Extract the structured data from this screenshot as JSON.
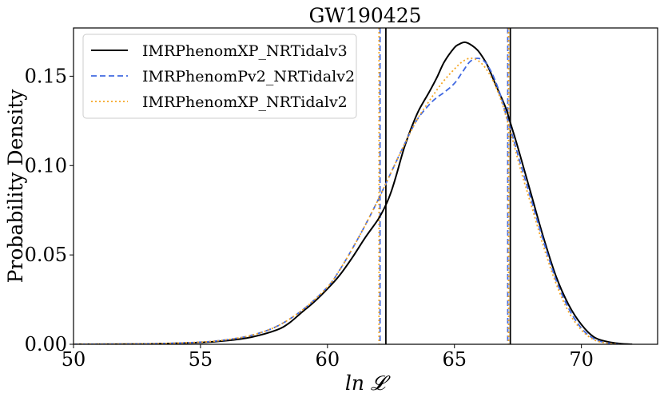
{
  "chart_data": {
    "type": "line",
    "title": "GW190425",
    "xlabel": "ln 𝓛",
    "ylabel": "Probability Density",
    "xlim": [
      50,
      73
    ],
    "ylim": [
      0,
      0.177
    ],
    "xticks": [
      50,
      55,
      60,
      65,
      70
    ],
    "xtick_labels": [
      "50",
      "55",
      "60",
      "65",
      "70"
    ],
    "yticks": [
      0.0,
      0.05,
      0.1,
      0.15
    ],
    "ytick_labels": [
      "0.00",
      "0.05",
      "0.10",
      "0.15"
    ],
    "grid": false,
    "legend_position": "top-left",
    "series": [
      {
        "name": "IMRPhenomXP_NRTidalv3",
        "color": "#000000",
        "style": "solid",
        "x": [
          50,
          53,
          55,
          56,
          57,
          58,
          58.5,
          59,
          59.5,
          60,
          60.5,
          61,
          61.5,
          62,
          62.3,
          62.5,
          62.7,
          63,
          63.3,
          63.6,
          64,
          64.3,
          64.6,
          65,
          65.2,
          65.4,
          65.6,
          65.8,
          66,
          66.3,
          66.6,
          67,
          67.2,
          67.5,
          68,
          68.5,
          69,
          69.5,
          70,
          70.5,
          71,
          71.5,
          72
        ],
        "y": [
          0.0,
          0.0002,
          0.001,
          0.002,
          0.004,
          0.008,
          0.012,
          0.018,
          0.024,
          0.031,
          0.039,
          0.049,
          0.06,
          0.07,
          0.078,
          0.085,
          0.094,
          0.109,
          0.121,
          0.131,
          0.141,
          0.149,
          0.158,
          0.166,
          0.168,
          0.169,
          0.168,
          0.166,
          0.163,
          0.156,
          0.146,
          0.133,
          0.124,
          0.11,
          0.085,
          0.06,
          0.038,
          0.022,
          0.011,
          0.004,
          0.0015,
          0.0004,
          0.0
        ]
      },
      {
        "name": "IMRPhenomPv2_NRTidalv2",
        "color": "#4169e1",
        "style": "dashed",
        "x": [
          50,
          53,
          55,
          56,
          57,
          58,
          59,
          60,
          60.5,
          61,
          61.5,
          62,
          62.5,
          63,
          63.5,
          64,
          64.3,
          64.6,
          65,
          65.3,
          65.6,
          65.9,
          66.2,
          66.5,
          66.8,
          67,
          67.3,
          67.6,
          68,
          68.5,
          69,
          69.5,
          70,
          70.5,
          71,
          71.5
        ],
        "y": [
          0.0,
          0.0003,
          0.0012,
          0.0025,
          0.005,
          0.01,
          0.019,
          0.032,
          0.042,
          0.054,
          0.067,
          0.081,
          0.096,
          0.111,
          0.125,
          0.134,
          0.138,
          0.141,
          0.146,
          0.152,
          0.158,
          0.16,
          0.158,
          0.151,
          0.14,
          0.13,
          0.116,
          0.101,
          0.082,
          0.058,
          0.036,
          0.02,
          0.009,
          0.003,
          0.0008,
          0.0
        ]
      },
      {
        "name": "IMRPhenomXP_NRTidalv2",
        "color": "#f5a623",
        "style": "dotted",
        "x": [
          50,
          53,
          55,
          56,
          57,
          58,
          59,
          60,
          60.5,
          61,
          61.5,
          62,
          62.5,
          63,
          63.5,
          64,
          64.5,
          65,
          65.3,
          65.6,
          65.9,
          66.2,
          66.5,
          66.8,
          67,
          67.3,
          67.6,
          68,
          68.5,
          69,
          69.5,
          70,
          70.5,
          71,
          71.5
        ],
        "y": [
          0.0,
          0.0003,
          0.0012,
          0.0025,
          0.005,
          0.01,
          0.019,
          0.032,
          0.042,
          0.054,
          0.067,
          0.081,
          0.096,
          0.111,
          0.125,
          0.136,
          0.146,
          0.154,
          0.158,
          0.16,
          0.159,
          0.155,
          0.148,
          0.138,
          0.129,
          0.114,
          0.098,
          0.079,
          0.055,
          0.034,
          0.018,
          0.008,
          0.0025,
          0.0007,
          0.0
        ]
      }
    ],
    "vlines": [
      {
        "x": 62.3,
        "color": "#000000",
        "style": "solid"
      },
      {
        "x": 67.2,
        "color": "#000000",
        "style": "solid"
      },
      {
        "x": 62.07,
        "color": "#4169e1",
        "style": "dashed"
      },
      {
        "x": 67.1,
        "color": "#4169e1",
        "style": "dashed"
      },
      {
        "x": 62.03,
        "color": "#f5a623",
        "style": "dotted"
      },
      {
        "x": 67.13,
        "color": "#f5a623",
        "style": "dotted"
      }
    ]
  }
}
